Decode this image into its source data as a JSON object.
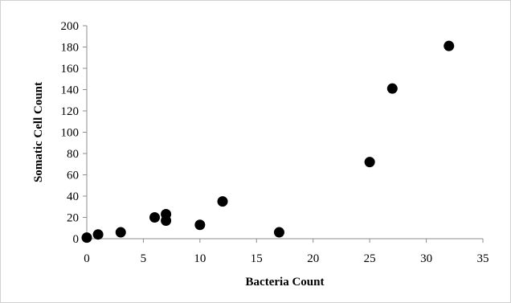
{
  "chart_data": {
    "type": "scatter",
    "title": "",
    "xlabel": "Bacteria Count",
    "ylabel": "Somatic Cell Count",
    "xlim": [
      0,
      35
    ],
    "ylim": [
      0,
      200
    ],
    "x_ticks": [
      0,
      5,
      10,
      15,
      20,
      25,
      30,
      35
    ],
    "y_ticks": [
      0,
      20,
      40,
      60,
      80,
      100,
      120,
      140,
      160,
      180,
      200
    ],
    "grid": false,
    "legend": "none",
    "marker_color": "#000000",
    "points": [
      {
        "x": 0,
        "y": 1
      },
      {
        "x": 1,
        "y": 4
      },
      {
        "x": 3,
        "y": 6
      },
      {
        "x": 6,
        "y": 20
      },
      {
        "x": 7,
        "y": 23
      },
      {
        "x": 7,
        "y": 17
      },
      {
        "x": 10,
        "y": 13
      },
      {
        "x": 12,
        "y": 35
      },
      {
        "x": 17,
        "y": 6
      },
      {
        "x": 25,
        "y": 72
      },
      {
        "x": 27,
        "y": 141
      },
      {
        "x": 32,
        "y": 181
      }
    ]
  }
}
